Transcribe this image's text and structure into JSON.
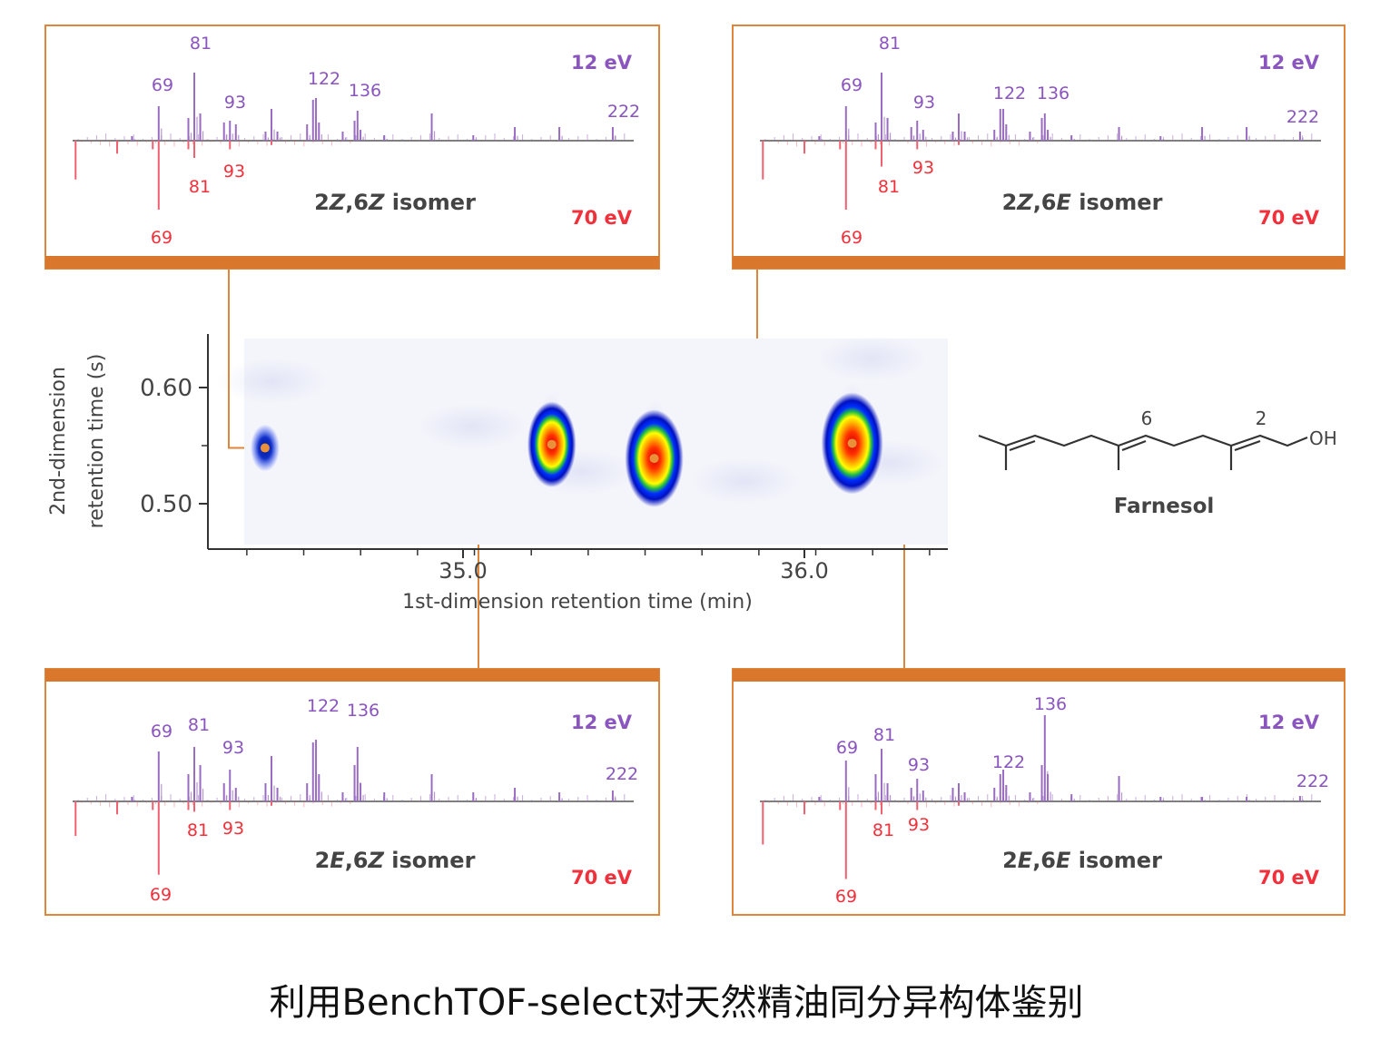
{
  "caption": "利用BenchTOF-select对天然精油同分异构体鉴别",
  "colors": {
    "panel_border": "#e0863a",
    "panel_bar": "#d9782c",
    "spectrum_12ev": "#9a6cc1",
    "spectrum_70ev": "#f06070",
    "label_12ev": "#8a55bf",
    "label_70ev": "#f0303a",
    "connector": "#e0863a"
  },
  "chart_data": [
    {
      "type": "heatmap",
      "xlabel": "1st-dimension retention time (min)",
      "ylabel_line1": "2nd-dimension",
      "ylabel_line2": "retention time (s)",
      "x_ticks": [
        "35.0",
        "36.0"
      ],
      "x_tick_values": [
        35.0,
        36.0
      ],
      "y_ticks": [
        "0.60",
        "0.50"
      ],
      "y_tick_values": [
        0.6,
        0.5
      ],
      "xlim": [
        34.3,
        36.45
      ],
      "ylim": [
        0.46,
        0.645
      ],
      "peaks": [
        {
          "x": 34.42,
          "y": 0.548,
          "intensity": 0.3,
          "matched": "2Z,6Z isomer"
        },
        {
          "x": 35.26,
          "y": 0.551,
          "intensity": 0.6,
          "matched": "2E,6Z isomer"
        },
        {
          "x": 35.56,
          "y": 0.539,
          "intensity": 0.9,
          "matched": "2Z,6E isomer"
        },
        {
          "x": 36.14,
          "y": 0.552,
          "intensity": 1.0,
          "matched": "2E,6E isomer"
        }
      ]
    },
    {
      "type": "bar",
      "title_prefix": "2",
      "title_a": "Z",
      "title_mid": ",6",
      "title_b": "Z",
      "title_suffix": " isomer",
      "upper_label": "12 eV",
      "lower_label": "70 eV",
      "upper_mz_labels": [
        "69",
        "81",
        "93",
        "122",
        "136",
        "222"
      ],
      "lower_mz_labels": [
        "93",
        "81",
        "69"
      ],
      "upper": [
        [
          60,
          0.05
        ],
        [
          69,
          0.38
        ],
        [
          79,
          0.25
        ],
        [
          81,
          0.75
        ],
        [
          83,
          0.3
        ],
        [
          91,
          0.2
        ],
        [
          93,
          0.22
        ],
        [
          95,
          0.18
        ],
        [
          105,
          0.1
        ],
        [
          107,
          0.35
        ],
        [
          109,
          0.1
        ],
        [
          119,
          0.18
        ],
        [
          121,
          0.45
        ],
        [
          122,
          0.47
        ],
        [
          123,
          0.2
        ],
        [
          131,
          0.1
        ],
        [
          135,
          0.22
        ],
        [
          136,
          0.33
        ],
        [
          137,
          0.12
        ],
        [
          145,
          0.06
        ],
        [
          161,
          0.3
        ],
        [
          175,
          0.06
        ],
        [
          189,
          0.15
        ],
        [
          204,
          0.15
        ],
        [
          222,
          0.15
        ]
      ],
      "lower": [
        [
          41,
          0.45
        ],
        [
          55,
          0.15
        ],
        [
          67,
          0.1
        ],
        [
          69,
          0.8
        ],
        [
          79,
          0.1
        ],
        [
          81,
          0.2
        ],
        [
          93,
          0.1
        ],
        [
          107,
          0.05
        ]
      ]
    },
    {
      "type": "bar",
      "title_prefix": "2",
      "title_a": "Z",
      "title_mid": ",6",
      "title_b": "E",
      "title_suffix": " isomer",
      "upper_label": "12 eV",
      "lower_label": "70 eV",
      "upper_mz_labels": [
        "69",
        "81",
        "93",
        "122",
        "136",
        "222"
      ],
      "lower_mz_labels": [
        "93",
        "81",
        "69"
      ],
      "upper": [
        [
          60,
          0.05
        ],
        [
          69,
          0.38
        ],
        [
          79,
          0.2
        ],
        [
          81,
          0.75
        ],
        [
          83,
          0.25
        ],
        [
          91,
          0.15
        ],
        [
          93,
          0.22
        ],
        [
          95,
          0.12
        ],
        [
          105,
          0.1
        ],
        [
          107,
          0.3
        ],
        [
          109,
          0.1
        ],
        [
          119,
          0.12
        ],
        [
          121,
          0.35
        ],
        [
          122,
          0.35
        ],
        [
          123,
          0.18
        ],
        [
          131,
          0.1
        ],
        [
          135,
          0.25
        ],
        [
          136,
          0.3
        ],
        [
          137,
          0.12
        ],
        [
          145,
          0.06
        ],
        [
          161,
          0.15
        ],
        [
          175,
          0.05
        ],
        [
          189,
          0.15
        ],
        [
          204,
          0.15
        ],
        [
          222,
          0.1
        ]
      ],
      "lower": [
        [
          41,
          0.45
        ],
        [
          55,
          0.15
        ],
        [
          67,
          0.1
        ],
        [
          69,
          0.8
        ],
        [
          79,
          0.1
        ],
        [
          81,
          0.3
        ],
        [
          93,
          0.1
        ],
        [
          107,
          0.05
        ]
      ]
    },
    {
      "type": "bar",
      "title_prefix": "2",
      "title_a": "E",
      "title_mid": ",6",
      "title_b": "Z",
      "title_suffix": " isomer",
      "upper_label": "12 eV",
      "lower_label": "70 eV",
      "upper_mz_labels": [
        "69",
        "81",
        "93",
        "122",
        "136",
        "222"
      ],
      "lower_mz_labels": [
        "81",
        "93",
        "69"
      ],
      "upper": [
        [
          60,
          0.05
        ],
        [
          69,
          0.55
        ],
        [
          79,
          0.3
        ],
        [
          81,
          0.6
        ],
        [
          83,
          0.4
        ],
        [
          91,
          0.2
        ],
        [
          93,
          0.35
        ],
        [
          95,
          0.15
        ],
        [
          105,
          0.2
        ],
        [
          107,
          0.5
        ],
        [
          109,
          0.15
        ],
        [
          119,
          0.2
        ],
        [
          121,
          0.65
        ],
        [
          122,
          0.68
        ],
        [
          123,
          0.3
        ],
        [
          131,
          0.1
        ],
        [
          135,
          0.4
        ],
        [
          136,
          0.6
        ],
        [
          137,
          0.2
        ],
        [
          145,
          0.1
        ],
        [
          161,
          0.3
        ],
        [
          175,
          0.1
        ],
        [
          189,
          0.15
        ],
        [
          204,
          0.1
        ],
        [
          222,
          0.12
        ]
      ],
      "lower": [
        [
          41,
          0.4
        ],
        [
          55,
          0.15
        ],
        [
          67,
          0.1
        ],
        [
          69,
          0.85
        ],
        [
          79,
          0.1
        ],
        [
          81,
          0.12
        ],
        [
          93,
          0.1
        ],
        [
          107,
          0.05
        ]
      ]
    },
    {
      "type": "bar",
      "title_prefix": "2",
      "title_a": "E",
      "title_mid": ",6",
      "title_b": "E",
      "title_suffix": " isomer",
      "upper_label": "12 eV",
      "lower_label": "70 eV",
      "upper_mz_labels": [
        "69",
        "81",
        "93",
        "122",
        "136",
        "222"
      ],
      "lower_mz_labels": [
        "81",
        "93",
        "69"
      ],
      "upper": [
        [
          60,
          0.05
        ],
        [
          69,
          0.45
        ],
        [
          79,
          0.3
        ],
        [
          81,
          0.58
        ],
        [
          83,
          0.2
        ],
        [
          91,
          0.15
        ],
        [
          93,
          0.25
        ],
        [
          95,
          0.12
        ],
        [
          105,
          0.15
        ],
        [
          107,
          0.2
        ],
        [
          109,
          0.1
        ],
        [
          119,
          0.15
        ],
        [
          121,
          0.3
        ],
        [
          122,
          0.35
        ],
        [
          123,
          0.18
        ],
        [
          131,
          0.1
        ],
        [
          135,
          0.4
        ],
        [
          136,
          0.95
        ],
        [
          137,
          0.3
        ],
        [
          145,
          0.08
        ],
        [
          161,
          0.28
        ],
        [
          175,
          0.05
        ],
        [
          189,
          0.05
        ],
        [
          204,
          0.05
        ],
        [
          222,
          0.06
        ]
      ],
      "lower": [
        [
          41,
          0.5
        ],
        [
          55,
          0.15
        ],
        [
          67,
          0.1
        ],
        [
          69,
          0.9
        ],
        [
          79,
          0.1
        ],
        [
          81,
          0.15
        ],
        [
          93,
          0.1
        ],
        [
          107,
          0.05
        ]
      ]
    }
  ],
  "structure": {
    "name": "Farnesol",
    "oh_label": "OH",
    "position_6": "6",
    "position_2": "2"
  }
}
